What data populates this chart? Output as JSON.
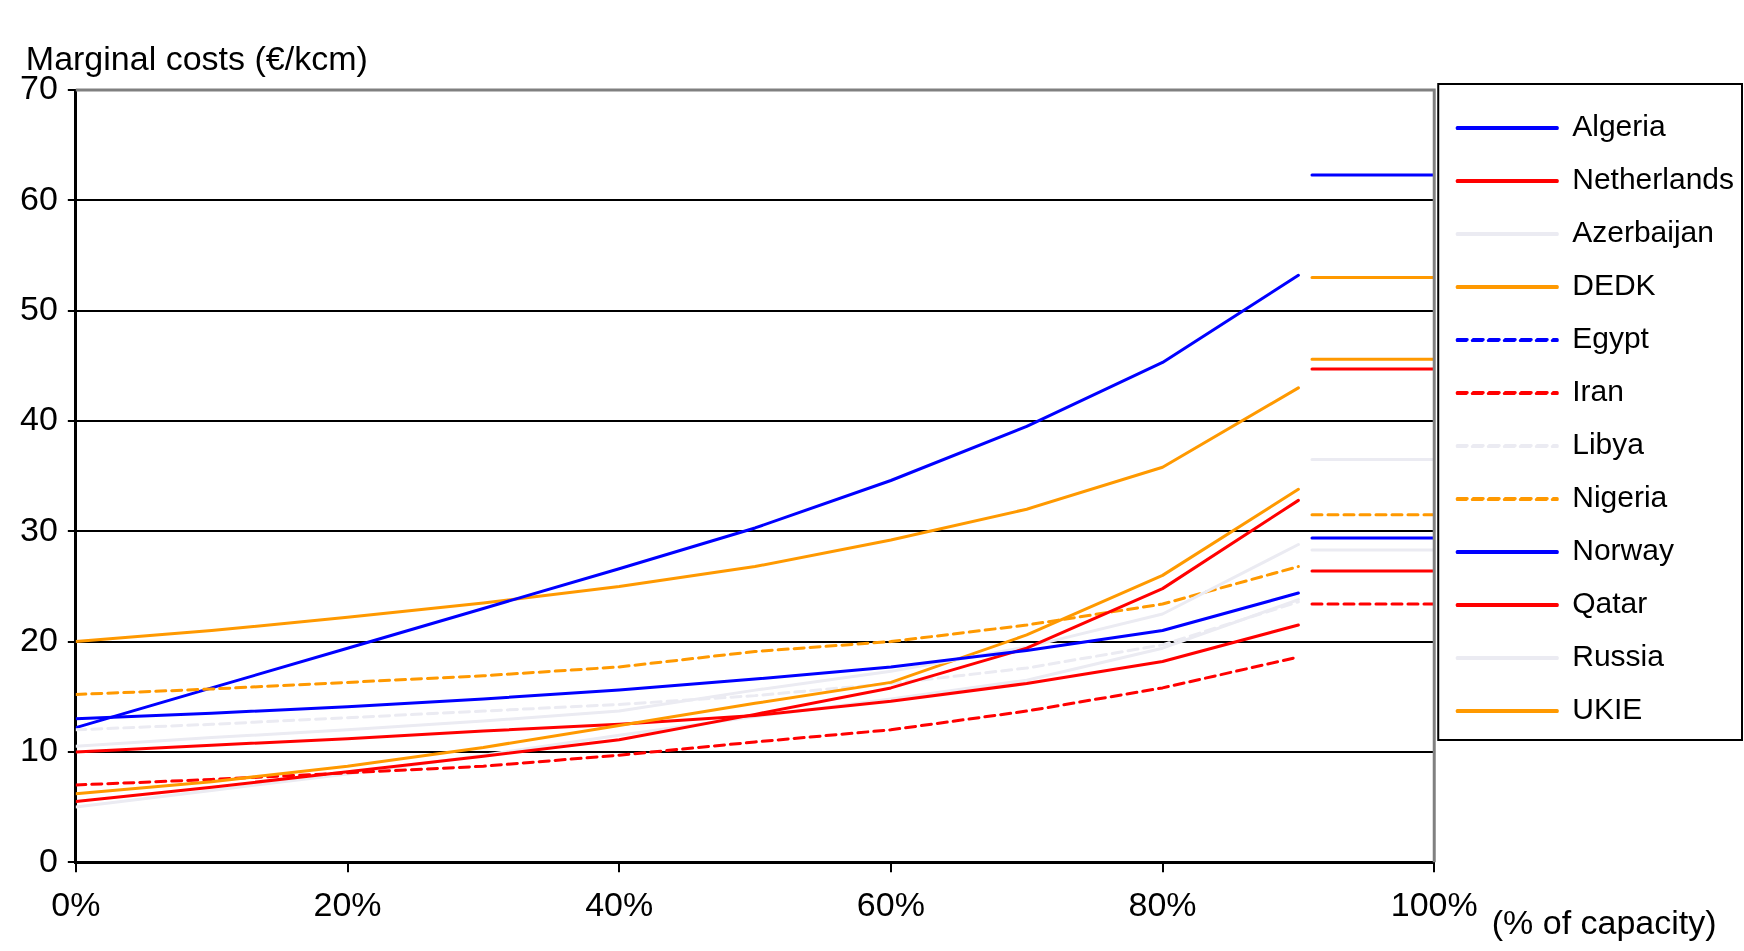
{
  "chart_data": {
    "type": "line",
    "ylabel": "Marginal costs (€/kcm)",
    "xlabel": "(% of capacity)",
    "xlim": [
      0,
      100
    ],
    "xticks": [
      {
        "value": 0,
        "label": "0%"
      },
      {
        "value": 20,
        "label": "20%"
      },
      {
        "value": 40,
        "label": "40%"
      },
      {
        "value": 60,
        "label": "60%"
      },
      {
        "value": 80,
        "label": "80%"
      },
      {
        "value": 100,
        "label": "100%"
      }
    ],
    "ylim": [
      0,
      70
    ],
    "yticks": [
      0,
      10,
      20,
      30,
      40,
      50,
      60,
      70
    ],
    "grid": "y",
    "legend": "right",
    "marker": "none",
    "series": [
      {
        "name": "Algeria",
        "color": "#0000ff",
        "line_style": "solid",
        "x": [
          0,
          10,
          20,
          30,
          40,
          50,
          60,
          70,
          80,
          90,
          90.5,
          91,
          100
        ],
        "values": [
          13,
          13.5,
          14.1,
          14.8,
          15.6,
          16.6,
          17.7,
          19.2,
          21,
          24.4,
          null,
          29.4,
          29.4
        ]
      },
      {
        "name": "Netherlands",
        "color": "#ff0000",
        "line_style": "solid",
        "x": [
          0,
          10,
          20,
          30,
          40,
          50,
          60,
          70,
          80,
          90,
          90.5,
          91,
          100
        ],
        "values": [
          5.5,
          6.8,
          8.2,
          9.6,
          11.1,
          13.4,
          15.8,
          19.4,
          24.8,
          32.8,
          null,
          44.7,
          44.7
        ]
      },
      {
        "name": "Azerbaijan",
        "color": "#ebebf2",
        "line_style": "solid",
        "x": [
          0,
          10,
          20,
          30,
          40,
          50,
          60,
          70,
          80,
          90,
          90.5,
          91,
          100
        ],
        "values": [
          10.5,
          11.3,
          12,
          12.8,
          13.7,
          15.6,
          17.3,
          19.5,
          22.5,
          28.8,
          null,
          36.5,
          36.5
        ]
      },
      {
        "name": "DEDK",
        "color": "#ff9900",
        "line_style": "solid",
        "x": [
          0,
          10,
          20,
          30,
          40,
          50,
          60,
          70,
          80,
          90,
          90.5,
          91,
          100
        ],
        "values": [
          6.2,
          7.3,
          8.7,
          10.4,
          12.4,
          14.4,
          16.3,
          20.6,
          26,
          33.8,
          null,
          45.6,
          45.6
        ]
      },
      {
        "name": "Egypt",
        "color": "#0000ff",
        "line_style": "dashed"
      },
      {
        "name": "Iran",
        "color": "#ff0000",
        "line_style": "dashed",
        "x": [
          0,
          10,
          20,
          30,
          40,
          50,
          60,
          70,
          80,
          90,
          90.5,
          91,
          100
        ],
        "values": [
          7,
          7.5,
          8.1,
          8.7,
          9.7,
          10.9,
          12,
          13.7,
          15.8,
          18.6,
          null,
          23.4,
          23.4
        ]
      },
      {
        "name": "Libya",
        "color": "#ebebf2",
        "line_style": "dashed",
        "x": [
          0,
          10,
          20,
          30,
          40,
          50,
          60,
          70,
          80,
          90
        ],
        "values": [
          12,
          12.5,
          13.1,
          13.7,
          14.3,
          15.1,
          16.2,
          17.6,
          19.7,
          23.6
        ]
      },
      {
        "name": "Nigeria",
        "color": "#ff9900",
        "line_style": "dashed",
        "x": [
          0,
          10,
          20,
          30,
          40,
          50,
          60,
          70,
          80,
          90,
          90.5,
          91,
          100
        ],
        "values": [
          15.2,
          15.7,
          16.3,
          16.9,
          17.7,
          19.1,
          20,
          21.5,
          23.4,
          26.8,
          null,
          31.5,
          31.5
        ]
      },
      {
        "name": "Norway",
        "color": "#0000ff",
        "line_style": "solid",
        "x": [
          0,
          10,
          20,
          30,
          40,
          50,
          60,
          70,
          80,
          90,
          90.5,
          91,
          100
        ],
        "values": [
          12.2,
          15.8,
          19.4,
          23,
          26.6,
          30.3,
          34.6,
          39.5,
          45.3,
          53.2,
          null,
          62.3,
          62.3
        ]
      },
      {
        "name": "Qatar",
        "color": "#ff0000",
        "line_style": "solid",
        "x": [
          0,
          10,
          20,
          30,
          40,
          50,
          60,
          70,
          80,
          90,
          90.5,
          91,
          100
        ],
        "values": [
          10,
          10.6,
          11.2,
          11.9,
          12.5,
          13.3,
          14.6,
          16.2,
          18.2,
          21.5,
          null,
          26.4,
          26.4
        ]
      },
      {
        "name": "Russia",
        "color": "#ebebf2",
        "line_style": "solid",
        "x": [
          0,
          10,
          20,
          30,
          40,
          50,
          60,
          70,
          80,
          90,
          90.5,
          91,
          100
        ],
        "values": [
          5,
          6.5,
          8,
          9.7,
          11.5,
          13.2,
          14.8,
          16.5,
          19.4,
          23.8,
          null,
          28.3,
          28.3
        ]
      },
      {
        "name": "UKIE",
        "color": "#ff9900",
        "line_style": "solid",
        "x": [
          0,
          10,
          20,
          30,
          40,
          50,
          60,
          70,
          80,
          90,
          90.5,
          91,
          100
        ],
        "values": [
          20,
          21,
          22.2,
          23.5,
          25,
          26.8,
          29.2,
          32,
          35.8,
          43,
          null,
          53,
          53
        ]
      }
    ]
  }
}
